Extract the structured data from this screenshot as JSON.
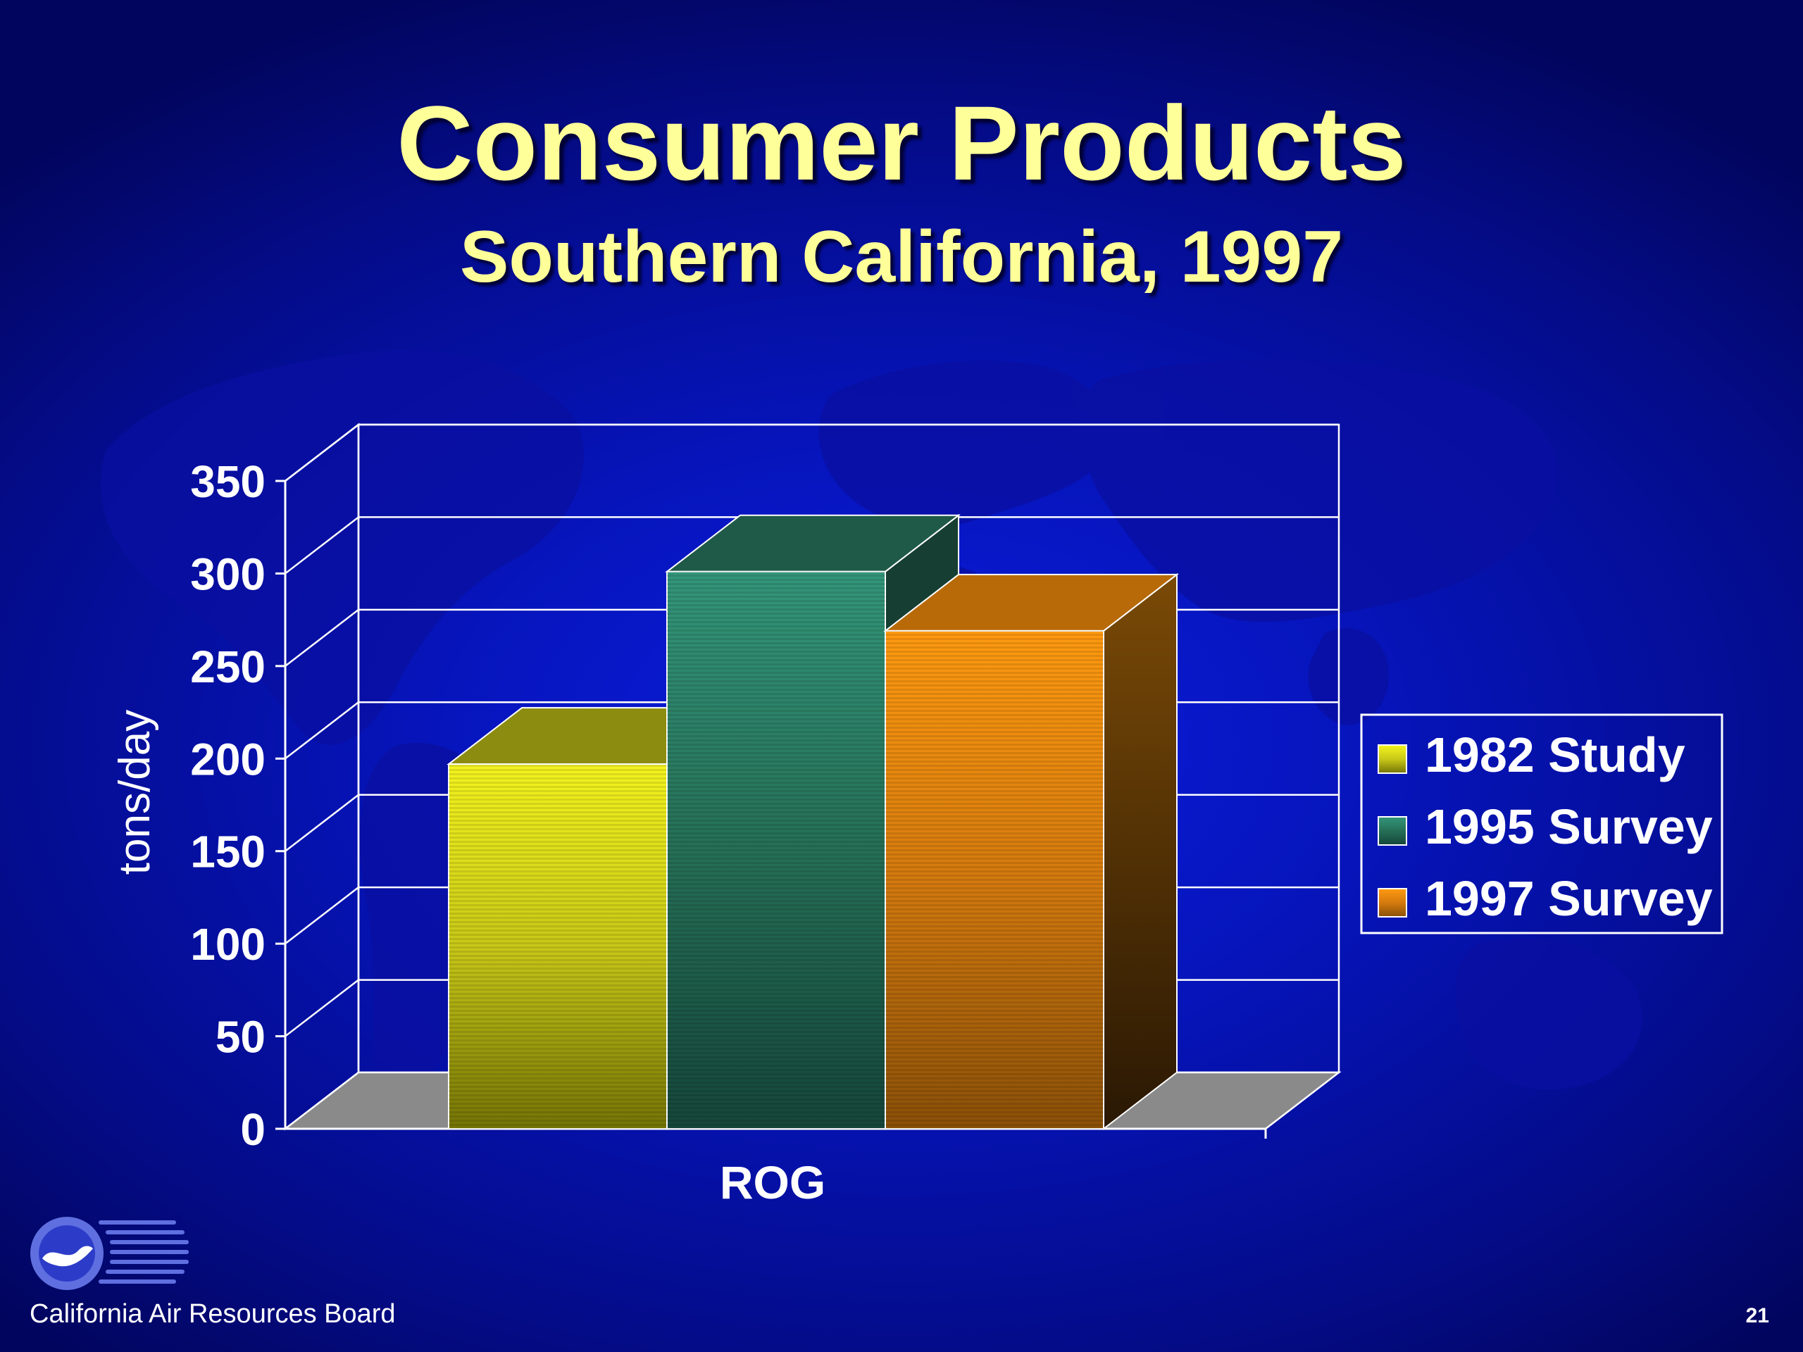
{
  "slide": {
    "title": "Consumer Products",
    "subtitle": "Southern California, 1997",
    "footer": "California Air Resources Board",
    "page_number": "21",
    "logo_icon": "carb-logo-icon"
  },
  "colors": {
    "background": "#0614b8",
    "title": "#ffff99",
    "series_1982": "#e8e81a",
    "series_1995": "#2f8a66",
    "series_1997": "#ff9a10"
  },
  "chart_data": {
    "type": "bar",
    "title": "",
    "xlabel": "",
    "ylabel": "tons/day",
    "ylim": [
      0,
      350
    ],
    "yticks": [
      "0",
      "50",
      "100",
      "150",
      "200",
      "250",
      "300",
      "350"
    ],
    "categories": [
      "ROG"
    ],
    "series": [
      {
        "name": "1982 Study",
        "values": [
          197
        ],
        "color": "#e8e81a"
      },
      {
        "name": "1995 Survey",
        "values": [
          301
        ],
        "color": "#2f8a66"
      },
      {
        "name": "1997 Survey",
        "values": [
          269
        ],
        "color": "#ff9a10"
      }
    ],
    "grid": true,
    "legend": "right",
    "style": "3d"
  }
}
